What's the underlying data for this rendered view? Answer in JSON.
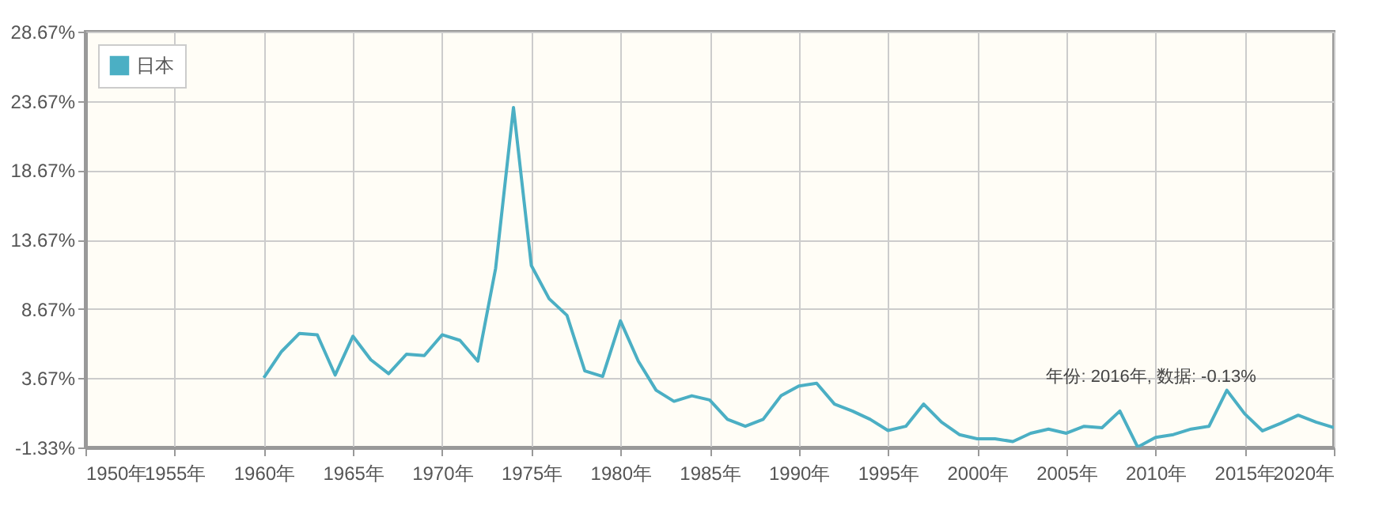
{
  "chart_data": {
    "type": "line",
    "x": [
      1960,
      1961,
      1962,
      1963,
      1964,
      1965,
      1966,
      1967,
      1968,
      1969,
      1970,
      1971,
      1972,
      1973,
      1974,
      1975,
      1976,
      1977,
      1978,
      1979,
      1980,
      1981,
      1982,
      1983,
      1984,
      1985,
      1986,
      1987,
      1988,
      1989,
      1990,
      1991,
      1992,
      1993,
      1994,
      1995,
      1996,
      1997,
      1998,
      1999,
      2000,
      2001,
      2002,
      2003,
      2004,
      2005,
      2006,
      2007,
      2008,
      2009,
      2010,
      2011,
      2012,
      2013,
      2014,
      2015,
      2016,
      2017,
      2018,
      2019,
      2020
    ],
    "series": [
      {
        "name": "日本",
        "color": "#4bafc4",
        "values": [
          3.7,
          5.6,
          6.9,
          6.8,
          3.9,
          6.7,
          5.0,
          4.0,
          5.4,
          5.3,
          6.8,
          6.4,
          4.9,
          11.6,
          23.2,
          11.8,
          9.4,
          8.2,
          4.2,
          3.8,
          7.8,
          4.9,
          2.8,
          2.0,
          2.4,
          2.1,
          0.7,
          0.2,
          0.7,
          2.4,
          3.1,
          3.3,
          1.8,
          1.3,
          0.7,
          -0.1,
          0.2,
          1.8,
          0.5,
          -0.4,
          -0.7,
          -0.7,
          -0.9,
          -0.3,
          0.0,
          -0.3,
          0.2,
          0.1,
          1.3,
          -1.3,
          -0.6,
          -0.4,
          0.0,
          0.2,
          2.8,
          1.1,
          -0.13,
          0.4,
          1.0,
          0.5,
          0.1
        ]
      }
    ],
    "xlim": [
      1950,
      2020
    ],
    "xticks": [
      {
        "value": 1950,
        "label": "1950年"
      },
      {
        "value": 1955,
        "label": "1955年"
      },
      {
        "value": 1960,
        "label": "1960年"
      },
      {
        "value": 1965,
        "label": "1965年"
      },
      {
        "value": 1970,
        "label": "1970年"
      },
      {
        "value": 1975,
        "label": "1975年"
      },
      {
        "value": 1980,
        "label": "1980年"
      },
      {
        "value": 1985,
        "label": "1985年"
      },
      {
        "value": 1990,
        "label": "1990年"
      },
      {
        "value": 1995,
        "label": "1995年"
      },
      {
        "value": 2000,
        "label": "2000年"
      },
      {
        "value": 2005,
        "label": "2005年"
      },
      {
        "value": 2010,
        "label": "2010年"
      },
      {
        "value": 2015,
        "label": "2015年"
      },
      {
        "value": 2020,
        "label": "2020年"
      }
    ],
    "ylim": [
      -1.33,
      28.67
    ],
    "yticks": [
      {
        "value": -1.33,
        "label": "-1.33%"
      },
      {
        "value": 3.67,
        "label": "3.67%"
      },
      {
        "value": 8.67,
        "label": "8.67%"
      },
      {
        "value": 13.67,
        "label": "13.67%"
      },
      {
        "value": 18.67,
        "label": "18.67%"
      },
      {
        "value": 23.67,
        "label": "23.67%"
      },
      {
        "value": 28.67,
        "label": "28.67%"
      }
    ],
    "grid": true,
    "legend": "top left",
    "annotations": [
      {
        "text": "年份: 2016年, 数据: -0.13%",
        "x": 2016,
        "y": -0.13
      }
    ]
  }
}
